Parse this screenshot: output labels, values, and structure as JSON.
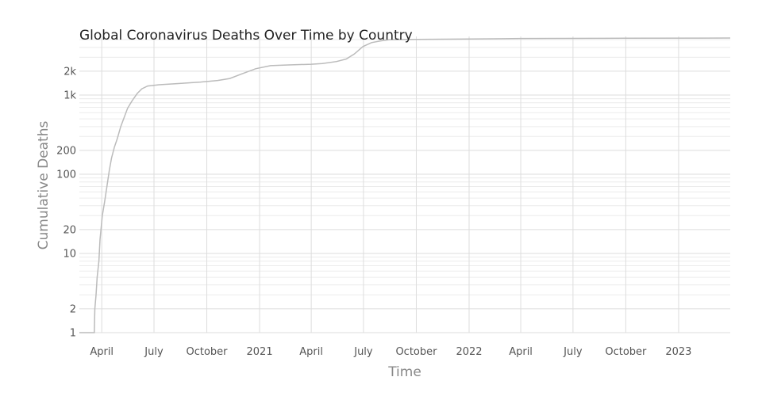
{
  "chart_data": {
    "type": "line",
    "title": "Global Coronavirus Deaths Over Time by Country",
    "xlabel": "Time",
    "ylabel": "Cumulative Deaths",
    "y_scale": "log",
    "grid": true,
    "x_range": [
      "2020-02-22",
      "2023-04-01"
    ],
    "ylim": [
      1,
      5500
    ],
    "x_ticks": [
      {
        "date": "2020-04-01",
        "label": "April"
      },
      {
        "date": "2020-07-01",
        "label": "July"
      },
      {
        "date": "2020-10-01",
        "label": "October"
      },
      {
        "date": "2021-01-01",
        "label": "2021"
      },
      {
        "date": "2021-04-01",
        "label": "April"
      },
      {
        "date": "2021-07-01",
        "label": "July"
      },
      {
        "date": "2021-10-01",
        "label": "October"
      },
      {
        "date": "2022-01-01",
        "label": "2022"
      },
      {
        "date": "2022-04-01",
        "label": "April"
      },
      {
        "date": "2022-07-01",
        "label": "July"
      },
      {
        "date": "2022-10-01",
        "label": "October"
      },
      {
        "date": "2023-01-01",
        "label": "2023"
      }
    ],
    "y_ticks": [
      {
        "value": 1,
        "label": "1"
      },
      {
        "value": 2,
        "label": "2"
      },
      {
        "value": 10,
        "label": "10"
      },
      {
        "value": 20,
        "label": "20"
      },
      {
        "value": 100,
        "label": "100"
      },
      {
        "value": 200,
        "label": "200"
      },
      {
        "value": 1000,
        "label": "1k"
      },
      {
        "value": 2000,
        "label": "2k"
      }
    ],
    "series": [
      {
        "color": "#bbbbbb",
        "points": [
          [
            "2020-02-22",
            1
          ],
          [
            "2020-03-19",
            1
          ],
          [
            "2020-03-20",
            2
          ],
          [
            "2020-03-22",
            3
          ],
          [
            "2020-03-24",
            5
          ],
          [
            "2020-03-27",
            8
          ],
          [
            "2020-03-29",
            15
          ],
          [
            "2020-04-02",
            30
          ],
          [
            "2020-04-06",
            45
          ],
          [
            "2020-04-10",
            70
          ],
          [
            "2020-04-14",
            110
          ],
          [
            "2020-04-18",
            160
          ],
          [
            "2020-04-23",
            220
          ],
          [
            "2020-04-28",
            280
          ],
          [
            "2020-05-04",
            400
          ],
          [
            "2020-05-10",
            520
          ],
          [
            "2020-05-16",
            680
          ],
          [
            "2020-05-24",
            850
          ],
          [
            "2020-06-02",
            1050
          ],
          [
            "2020-06-10",
            1200
          ],
          [
            "2020-06-20",
            1300
          ],
          [
            "2020-07-10",
            1350
          ],
          [
            "2020-08-15",
            1400
          ],
          [
            "2020-09-20",
            1460
          ],
          [
            "2020-10-20",
            1530
          ],
          [
            "2020-11-10",
            1620
          ],
          [
            "2020-12-01",
            1850
          ],
          [
            "2020-12-25",
            2150
          ],
          [
            "2021-01-20",
            2350
          ],
          [
            "2021-02-20",
            2400
          ],
          [
            "2021-04-01",
            2450
          ],
          [
            "2021-04-20",
            2500
          ],
          [
            "2021-05-15",
            2650
          ],
          [
            "2021-06-01",
            2850
          ],
          [
            "2021-06-15",
            3300
          ],
          [
            "2021-06-30",
            4100
          ],
          [
            "2021-07-15",
            4600
          ],
          [
            "2021-08-01",
            4850
          ],
          [
            "2021-08-15",
            5000
          ],
          [
            "2021-10-01",
            5050
          ],
          [
            "2022-01-01",
            5100
          ],
          [
            "2022-04-01",
            5180
          ],
          [
            "2022-10-01",
            5220
          ],
          [
            "2023-04-01",
            5250
          ]
        ]
      }
    ]
  }
}
